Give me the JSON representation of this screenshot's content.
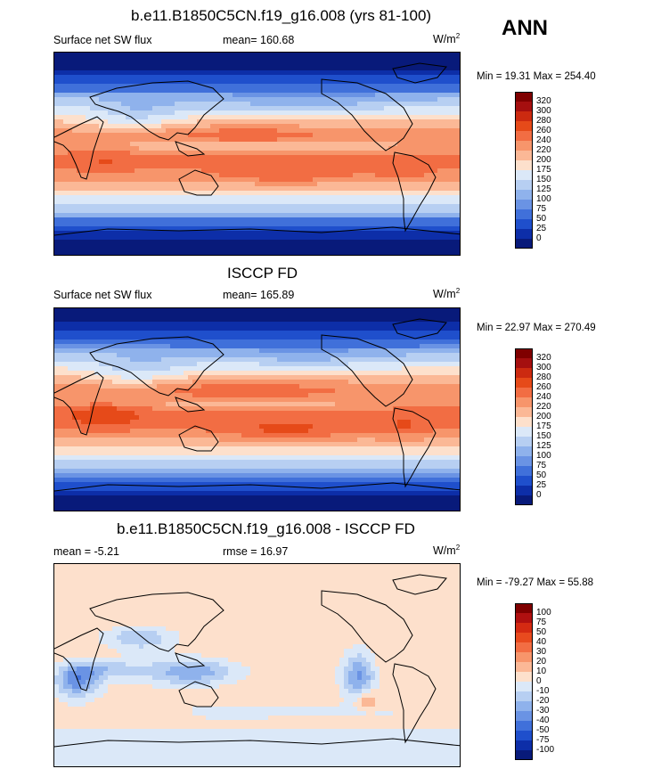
{
  "season": "ANN",
  "panels": [
    {
      "title": "b.e11.B1850C5CN.f19_g16.008 (yrs 81-100)",
      "left_label": "Surface net SW flux",
      "center_label": "mean= 160.68",
      "units": "W/m",
      "units_sup": "2",
      "minmax": "Min =  19.31 Max = 254.40",
      "colorbar": {
        "ticks": [
          "320",
          "300",
          "280",
          "260",
          "240",
          "220",
          "200",
          "175",
          "150",
          "125",
          "100",
          "75",
          "50",
          "25",
          "0"
        ],
        "colors": [
          "#7f0000",
          "#a50f0f",
          "#cc2a10",
          "#e64a19",
          "#f26d43",
          "#f7956b",
          "#fbb896",
          "#fde0cc",
          "#dbe8f8",
          "#b7cff2",
          "#8fb2ec",
          "#6a93e4",
          "#4070da",
          "#1f4fcc",
          "#0d2ea8",
          "#081a7a"
        ]
      },
      "field": "model"
    },
    {
      "title": "ISCCP FD",
      "left_label": "Surface net SW flux",
      "center_label": "mean= 165.89",
      "units": "W/m",
      "units_sup": "2",
      "minmax": "Min =  22.97 Max = 270.49",
      "colorbar": {
        "ticks": [
          "320",
          "300",
          "280",
          "260",
          "240",
          "220",
          "200",
          "175",
          "150",
          "125",
          "100",
          "75",
          "50",
          "25",
          "0"
        ],
        "colors": [
          "#7f0000",
          "#a50f0f",
          "#cc2a10",
          "#e64a19",
          "#f26d43",
          "#f7956b",
          "#fbb896",
          "#fde0cc",
          "#dbe8f8",
          "#b7cff2",
          "#8fb2ec",
          "#6a93e4",
          "#4070da",
          "#1f4fcc",
          "#0d2ea8",
          "#081a7a"
        ]
      },
      "field": "obs"
    },
    {
      "title": "b.e11.B1850C5CN.f19_g16.008 - ISCCP FD",
      "left_label": "mean =  -5.21",
      "center_label": "rmse =  16.97",
      "units": "W/m",
      "units_sup": "2",
      "minmax": "Min = -79.27 Max =  55.88",
      "colorbar": {
        "ticks": [
          "100",
          "75",
          "50",
          "40",
          "30",
          "20",
          "10",
          "0",
          "-10",
          "-20",
          "-30",
          "-40",
          "-50",
          "-75",
          "-100"
        ],
        "colors": [
          "#7f0000",
          "#b01010",
          "#d42a12",
          "#e84a1e",
          "#f26d43",
          "#f7956b",
          "#fbb896",
          "#fde0cc",
          "#dbe8f8",
          "#b7cff2",
          "#8fb2ec",
          "#6a93e4",
          "#4070da",
          "#1f4fcc",
          "#0d2ea8",
          "#081a7a"
        ]
      },
      "field": "diff"
    }
  ],
  "chart_data": [
    {
      "type": "heatmap",
      "title": "b.e11.B1850C5CN.f19_g16.008 (yrs 81-100)",
      "variable": "Surface net SW flux",
      "units": "W/m2",
      "mean": 160.68,
      "min": 19.31,
      "max": 254.4,
      "contour_levels": [
        0,
        25,
        50,
        75,
        100,
        125,
        150,
        175,
        200,
        220,
        240,
        260,
        280,
        300,
        320
      ]
    },
    {
      "type": "heatmap",
      "title": "ISCCP FD",
      "variable": "Surface net SW flux",
      "units": "W/m2",
      "mean": 165.89,
      "min": 22.97,
      "max": 270.49,
      "contour_levels": [
        0,
        25,
        50,
        75,
        100,
        125,
        150,
        175,
        200,
        220,
        240,
        260,
        280,
        300,
        320
      ]
    },
    {
      "type": "heatmap",
      "title": "b.e11.B1850C5CN.f19_g16.008 - ISCCP FD",
      "units": "W/m2",
      "mean": -5.21,
      "rmse": 16.97,
      "min": -79.27,
      "max": 55.88,
      "contour_levels": [
        -100,
        -75,
        -50,
        -40,
        -30,
        -20,
        -10,
        0,
        10,
        20,
        30,
        40,
        50,
        75,
        100
      ]
    }
  ]
}
